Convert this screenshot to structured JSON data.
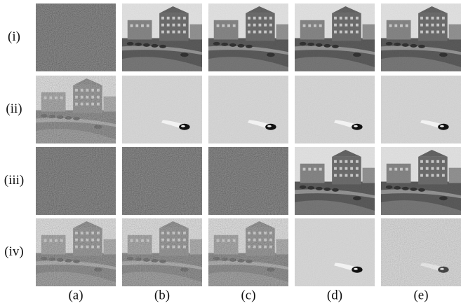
{
  "row_labels": [
    "(i)",
    "(ii)",
    "(iii)",
    "(iv)"
  ],
  "column_labels": [
    "(a)",
    "(b)",
    "(c)",
    "(d)",
    "(e)"
  ]
}
